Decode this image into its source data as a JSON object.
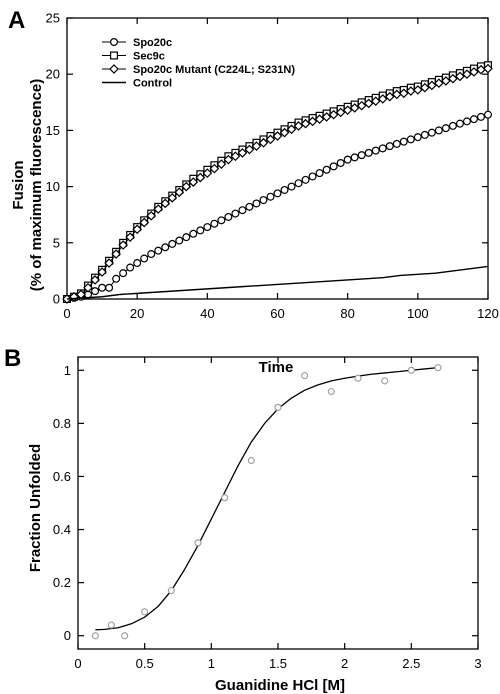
{
  "colors": {
    "ink": "#000000",
    "marker_fill": "#ffffff",
    "panel_b_marker": "#9a9a9a"
  },
  "chart_data": [
    {
      "panel": "A",
      "type": "line",
      "xlabel": "Time",
      "ylabel_line1": "Fusion",
      "ylabel_line2": "(% of maximum fluorescence)",
      "xlim": [
        0,
        120
      ],
      "ylim": [
        0,
        25
      ],
      "xticks": [
        0,
        20,
        40,
        60,
        80,
        100,
        120
      ],
      "yticks": [
        0,
        5,
        10,
        15,
        20,
        25
      ],
      "grid": false,
      "legend_position": "top-left",
      "series": [
        {
          "name": "Spo20c",
          "marker": "circle",
          "x": [
            0,
            2,
            4,
            6,
            8,
            10,
            12,
            14,
            16,
            18,
            20,
            22,
            24,
            26,
            28,
            30,
            32,
            34,
            36,
            38,
            40,
            42,
            44,
            46,
            48,
            50,
            52,
            54,
            56,
            58,
            60,
            62,
            64,
            66,
            68,
            70,
            72,
            74,
            76,
            78,
            80,
            82,
            84,
            86,
            88,
            90,
            92,
            94,
            96,
            98,
            100,
            102,
            104,
            106,
            108,
            110,
            112,
            114,
            116,
            118,
            120
          ],
          "y": [
            0,
            0.1,
            0.2,
            0.4,
            0.7,
            1.0,
            1.0,
            1.8,
            2.3,
            2.8,
            3.2,
            3.6,
            4.0,
            4.3,
            4.6,
            4.9,
            5.2,
            5.5,
            5.8,
            6.1,
            6.4,
            6.7,
            7.0,
            7.3,
            7.6,
            7.9,
            8.2,
            8.5,
            8.8,
            9.1,
            9.4,
            9.7,
            10.0,
            10.3,
            10.6,
            10.9,
            11.2,
            11.5,
            11.8,
            12.1,
            12.4,
            12.6,
            12.8,
            13.0,
            13.2,
            13.4,
            13.6,
            13.8,
            14.0,
            14.2,
            14.4,
            14.6,
            14.8,
            15.0,
            15.2,
            15.4,
            15.6,
            15.8,
            16.0,
            16.2,
            16.4
          ]
        },
        {
          "name": "Sec9c",
          "marker": "square",
          "x": [
            0,
            2,
            4,
            6,
            8,
            10,
            12,
            14,
            16,
            18,
            20,
            22,
            24,
            26,
            28,
            30,
            32,
            34,
            36,
            38,
            40,
            42,
            44,
            46,
            48,
            50,
            52,
            54,
            56,
            58,
            60,
            62,
            64,
            66,
            68,
            70,
            72,
            74,
            76,
            78,
            80,
            82,
            84,
            86,
            88,
            90,
            92,
            94,
            96,
            98,
            100,
            102,
            104,
            106,
            108,
            110,
            112,
            114,
            116,
            118,
            120
          ],
          "y": [
            0,
            0.2,
            0.5,
            1.2,
            1.9,
            2.6,
            3.4,
            4.2,
            5.0,
            5.7,
            6.4,
            7.0,
            7.6,
            8.2,
            8.7,
            9.2,
            9.7,
            10.2,
            10.7,
            11.1,
            11.5,
            11.9,
            12.3,
            12.7,
            13.0,
            13.3,
            13.6,
            13.9,
            14.2,
            14.5,
            14.8,
            15.1,
            15.4,
            15.7,
            15.9,
            16.1,
            16.3,
            16.5,
            16.7,
            16.9,
            17.1,
            17.3,
            17.5,
            17.7,
            17.9,
            18.1,
            18.3,
            18.5,
            18.6,
            18.8,
            18.9,
            19.1,
            19.3,
            19.5,
            19.7,
            19.9,
            20.1,
            20.3,
            20.5,
            20.7,
            20.8
          ]
        },
        {
          "name": "Spo20c Mutant (C224L; S231N)",
          "marker": "diamond",
          "x": [
            0,
            2,
            4,
            6,
            8,
            10,
            12,
            14,
            16,
            18,
            20,
            22,
            24,
            26,
            28,
            30,
            32,
            34,
            36,
            38,
            40,
            42,
            44,
            46,
            48,
            50,
            52,
            54,
            56,
            58,
            60,
            62,
            64,
            66,
            68,
            70,
            72,
            74,
            76,
            78,
            80,
            82,
            84,
            86,
            88,
            90,
            92,
            94,
            96,
            98,
            100,
            102,
            104,
            106,
            108,
            110,
            112,
            114,
            116,
            118,
            120
          ],
          "y": [
            0,
            0.2,
            0.4,
            1.0,
            1.7,
            2.4,
            3.2,
            4.0,
            4.8,
            5.5,
            6.2,
            6.8,
            7.4,
            8.0,
            8.5,
            9.0,
            9.5,
            10.0,
            10.4,
            10.8,
            11.2,
            11.6,
            12.0,
            12.4,
            12.7,
            13.0,
            13.3,
            13.6,
            13.9,
            14.2,
            14.5,
            14.8,
            15.1,
            15.4,
            15.6,
            15.8,
            16.0,
            16.2,
            16.4,
            16.6,
            16.8,
            17.0,
            17.2,
            17.4,
            17.6,
            17.8,
            18.0,
            18.2,
            18.3,
            18.5,
            18.6,
            18.8,
            19.0,
            19.2,
            19.4,
            19.6,
            19.8,
            20.0,
            20.2,
            20.4,
            20.5
          ]
        },
        {
          "name": "Control",
          "marker": "none",
          "x": [
            0,
            5,
            10,
            15,
            20,
            25,
            30,
            35,
            40,
            45,
            50,
            55,
            60,
            65,
            70,
            75,
            80,
            85,
            90,
            95,
            100,
            105,
            110,
            115,
            120
          ],
          "y": [
            0,
            0.1,
            0.2,
            0.4,
            0.5,
            0.6,
            0.7,
            0.8,
            0.9,
            1.0,
            1.1,
            1.2,
            1.3,
            1.4,
            1.5,
            1.6,
            1.7,
            1.8,
            1.9,
            2.1,
            2.2,
            2.3,
            2.5,
            2.7,
            2.9
          ]
        }
      ]
    },
    {
      "panel": "B",
      "type": "scatter",
      "xlabel": "Guanidine HCl [M]",
      "ylabel": "Fraction Unfolded",
      "xlim": [
        0,
        3
      ],
      "ylim": [
        -0.05,
        1.05
      ],
      "xticks": [
        0,
        0.5,
        1,
        1.5,
        2,
        2.5,
        3
      ],
      "yticks": [
        0,
        0.2,
        0.4,
        0.6,
        0.8,
        1
      ],
      "grid": false,
      "points": {
        "x": [
          0.13,
          0.25,
          0.35,
          0.5,
          0.7,
          0.9,
          1.1,
          1.3,
          1.5,
          1.7,
          1.9,
          2.1,
          2.3,
          2.5,
          2.7
        ],
        "y": [
          0.0,
          0.04,
          0.0,
          0.09,
          0.17,
          0.35,
          0.52,
          0.66,
          0.86,
          0.98,
          0.92,
          0.97,
          0.96,
          1.0,
          1.01
        ]
      },
      "fit": {
        "x": [
          0.13,
          0.2,
          0.3,
          0.4,
          0.5,
          0.6,
          0.7,
          0.8,
          0.9,
          1.0,
          1.1,
          1.2,
          1.3,
          1.4,
          1.5,
          1.6,
          1.7,
          1.8,
          1.9,
          2.0,
          2.1,
          2.2,
          2.3,
          2.4,
          2.5,
          2.6,
          2.7
        ],
        "y": [
          0.022,
          0.024,
          0.03,
          0.045,
          0.07,
          0.11,
          0.17,
          0.25,
          0.34,
          0.44,
          0.54,
          0.64,
          0.73,
          0.8,
          0.855,
          0.895,
          0.925,
          0.945,
          0.96,
          0.97,
          0.978,
          0.985,
          0.99,
          0.995,
          1.0,
          1.005,
          1.01
        ]
      }
    }
  ]
}
